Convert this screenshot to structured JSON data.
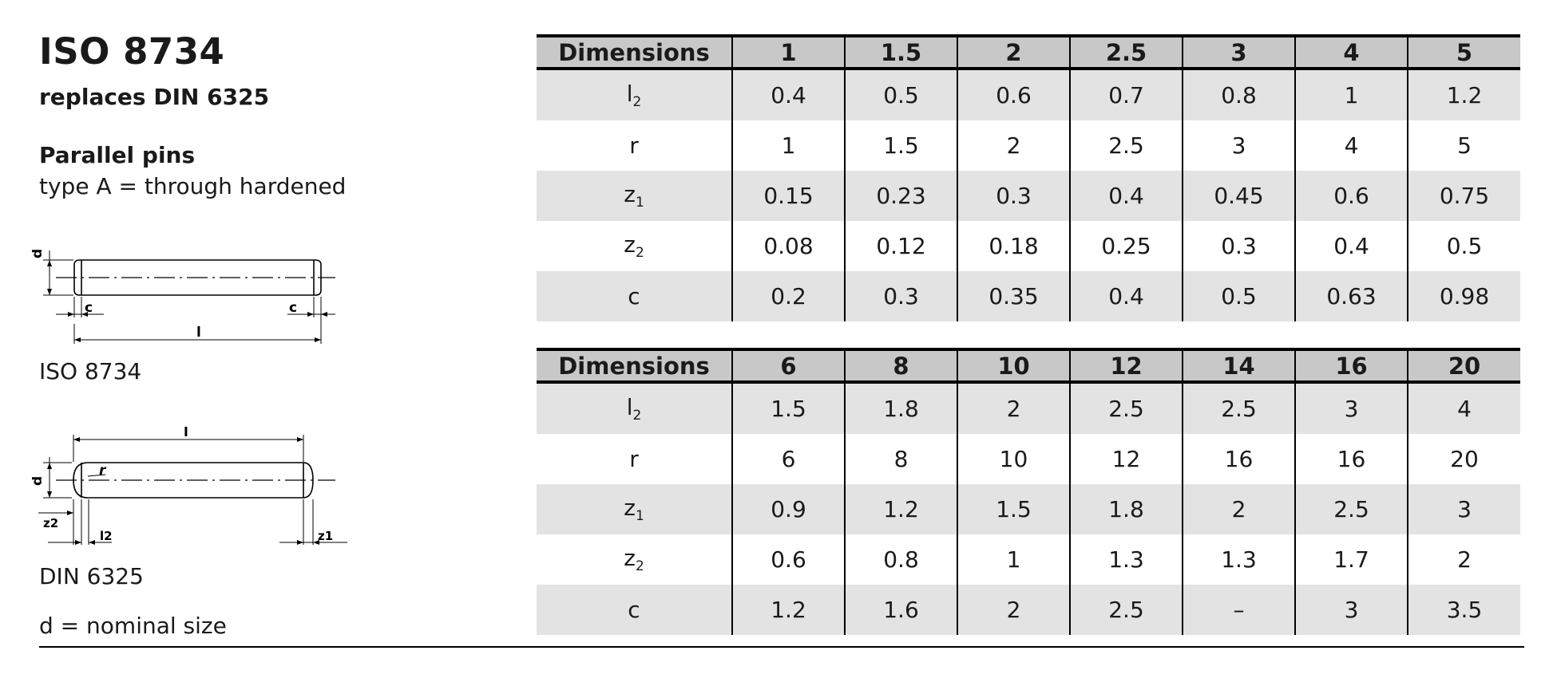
{
  "left": {
    "title": "ISO 8734",
    "subtitle": "replaces DIN 6325",
    "section": "Parallel pins",
    "description": "type A = through hardened",
    "figure1_caption": "ISO 8734",
    "figure2_caption": "DIN 6325",
    "note": "d = nominal size",
    "figure1_labels": {
      "d": "d",
      "c_left": "c",
      "c_right": "c",
      "l": "l"
    },
    "figure2_labels": {
      "l": "l",
      "d": "d",
      "r": "r",
      "z2": "z2",
      "l2": "l2",
      "z1": "z1"
    }
  },
  "row_labels": [
    {
      "base": "l",
      "sub": "2"
    },
    {
      "base": "r",
      "sub": ""
    },
    {
      "base": "z",
      "sub": "1"
    },
    {
      "base": "z",
      "sub": "2"
    },
    {
      "base": "c",
      "sub": ""
    }
  ],
  "table1": {
    "header_label": "Dimensions",
    "columns": [
      "1",
      "1.5",
      "2",
      "2.5",
      "3",
      "4",
      "5"
    ],
    "rows": [
      [
        "0.4",
        "0.5",
        "0.6",
        "0.7",
        "0.8",
        "1",
        "1.2"
      ],
      [
        "1",
        "1.5",
        "2",
        "2.5",
        "3",
        "4",
        "5"
      ],
      [
        "0.15",
        "0.23",
        "0.3",
        "0.4",
        "0.45",
        "0.6",
        "0.75"
      ],
      [
        "0.08",
        "0.12",
        "0.18",
        "0.25",
        "0.3",
        "0.4",
        "0.5"
      ],
      [
        "0.2",
        "0.3",
        "0.35",
        "0.4",
        "0.5",
        "0.63",
        "0.98"
      ]
    ]
  },
  "table2": {
    "header_label": "Dimensions",
    "columns": [
      "6",
      "8",
      "10",
      "12",
      "14",
      "16",
      "20"
    ],
    "rows": [
      [
        "1.5",
        "1.8",
        "2",
        "2.5",
        "2.5",
        "3",
        "4"
      ],
      [
        "6",
        "8",
        "10",
        "12",
        "16",
        "16",
        "20"
      ],
      [
        "0.9",
        "1.2",
        "1.5",
        "1.8",
        "2",
        "2.5",
        "3"
      ],
      [
        "0.6",
        "0.8",
        "1",
        "1.3",
        "1.3",
        "1.7",
        "2"
      ],
      [
        "1.2",
        "1.6",
        "2",
        "2.5",
        "–",
        "3",
        "3.5"
      ]
    ]
  }
}
